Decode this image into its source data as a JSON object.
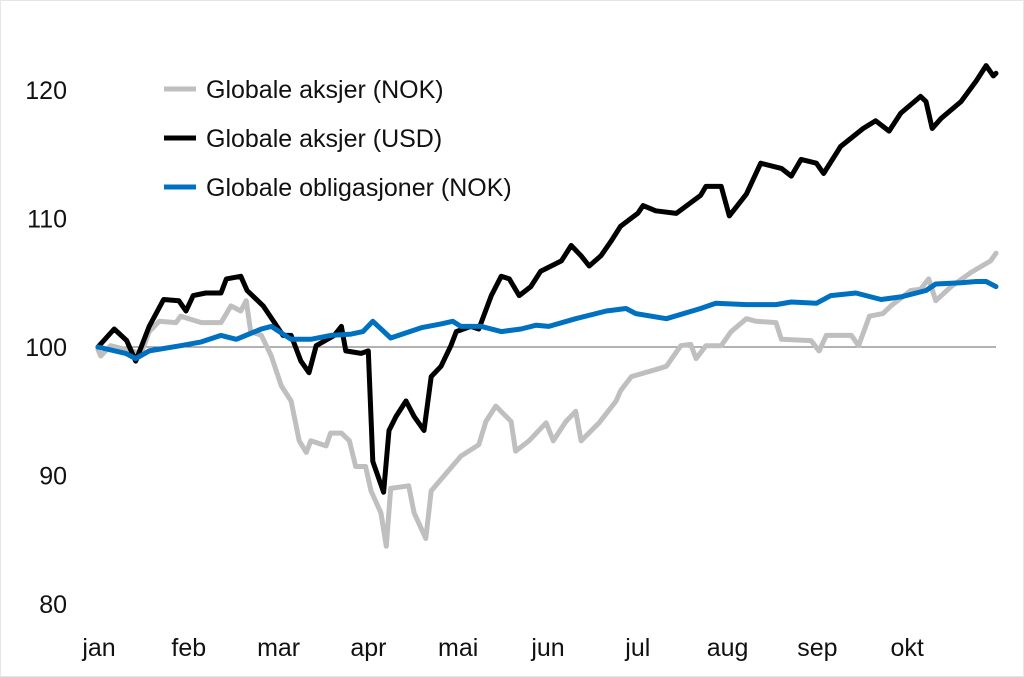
{
  "chart_data": {
    "type": "line",
    "title": "",
    "xlabel": "",
    "ylabel": "",
    "ylim": [
      80,
      122
    ],
    "xlim": [
      0,
      10
    ],
    "yticks": [
      80,
      90,
      100,
      110,
      120
    ],
    "xtick_labels": [
      "jan",
      "feb",
      "mar",
      "apr",
      "mai",
      "jun",
      "jul",
      "aug",
      "sep",
      "okt"
    ],
    "reference_line": 100,
    "legend_position": "top-left",
    "series": [
      {
        "name": "Globale aksjer (NOK)",
        "color": "#bfbfbf",
        "points": [
          [
            0,
            99.8
          ],
          [
            0.03,
            99.3
          ],
          [
            0.14,
            100.1
          ],
          [
            0.48,
            99.5
          ],
          [
            0.57,
            101.2
          ],
          [
            0.68,
            102.0
          ],
          [
            0.87,
            101.9
          ],
          [
            0.92,
            102.4
          ],
          [
            1.15,
            101.9
          ],
          [
            1.37,
            101.9
          ],
          [
            1.43,
            102.6
          ],
          [
            1.48,
            103.2
          ],
          [
            1.59,
            102.8
          ],
          [
            1.65,
            103.6
          ],
          [
            1.7,
            101.2
          ],
          [
            1.82,
            100.9
          ],
          [
            1.93,
            99.3
          ],
          [
            2.04,
            97.0
          ],
          [
            2.15,
            95.8
          ],
          [
            2.24,
            92.7
          ],
          [
            2.32,
            91.8
          ],
          [
            2.37,
            92.7
          ],
          [
            2.54,
            92.3
          ],
          [
            2.59,
            93.3
          ],
          [
            2.71,
            93.3
          ],
          [
            2.8,
            92.7
          ],
          [
            2.87,
            90.7
          ],
          [
            2.98,
            90.7
          ],
          [
            3.04,
            88.8
          ],
          [
            3.15,
            87.1
          ],
          [
            3.21,
            84.5
          ],
          [
            3.26,
            89.0
          ],
          [
            3.46,
            89.2
          ],
          [
            3.52,
            87.1
          ],
          [
            3.65,
            85.1
          ],
          [
            3.71,
            88.8
          ],
          [
            3.82,
            89.7
          ],
          [
            4.04,
            91.5
          ],
          [
            4.24,
            92.4
          ],
          [
            4.32,
            94.2
          ],
          [
            4.43,
            95.4
          ],
          [
            4.6,
            94.2
          ],
          [
            4.65,
            91.9
          ],
          [
            4.8,
            92.7
          ],
          [
            4.99,
            94.1
          ],
          [
            5.07,
            92.7
          ],
          [
            5.21,
            94.2
          ],
          [
            5.32,
            95.0
          ],
          [
            5.38,
            92.7
          ],
          [
            5.58,
            94.1
          ],
          [
            5.77,
            95.8
          ],
          [
            5.82,
            96.6
          ],
          [
            5.94,
            97.7
          ],
          [
            6.24,
            98.3
          ],
          [
            6.33,
            98.5
          ],
          [
            6.49,
            100.1
          ],
          [
            6.6,
            100.2
          ],
          [
            6.66,
            99.1
          ],
          [
            6.77,
            100.1
          ],
          [
            6.94,
            100.1
          ],
          [
            7.05,
            101.2
          ],
          [
            7.22,
            102.2
          ],
          [
            7.33,
            102.0
          ],
          [
            7.55,
            101.9
          ],
          [
            7.61,
            100.6
          ],
          [
            7.94,
            100.5
          ],
          [
            8.03,
            99.7
          ],
          [
            8.11,
            100.9
          ],
          [
            8.39,
            100.9
          ],
          [
            8.47,
            100.1
          ],
          [
            8.59,
            102.4
          ],
          [
            8.74,
            102.6
          ],
          [
            8.83,
            103.2
          ],
          [
            9.05,
            104.4
          ],
          [
            9.16,
            104.5
          ],
          [
            9.25,
            105.3
          ],
          [
            9.33,
            103.6
          ],
          [
            9.5,
            104.7
          ],
          [
            9.72,
            105.8
          ],
          [
            9.94,
            106.7
          ],
          [
            10.0,
            107.3
          ]
        ]
      },
      {
        "name": "Globale aksjer (USD)",
        "color": "#000000",
        "points": [
          [
            0,
            100.0
          ],
          [
            0.18,
            101.4
          ],
          [
            0.32,
            100.5
          ],
          [
            0.42,
            98.9
          ],
          [
            0.57,
            101.6
          ],
          [
            0.73,
            103.7
          ],
          [
            0.9,
            103.6
          ],
          [
            0.98,
            102.8
          ],
          [
            1.06,
            104.0
          ],
          [
            1.2,
            104.2
          ],
          [
            1.37,
            104.2
          ],
          [
            1.43,
            105.3
          ],
          [
            1.59,
            105.5
          ],
          [
            1.66,
            104.4
          ],
          [
            1.84,
            103.2
          ],
          [
            2.06,
            100.9
          ],
          [
            2.15,
            100.9
          ],
          [
            2.26,
            98.9
          ],
          [
            2.35,
            98.0
          ],
          [
            2.43,
            100.1
          ],
          [
            2.63,
            100.9
          ],
          [
            2.71,
            101.6
          ],
          [
            2.76,
            99.7
          ],
          [
            2.93,
            99.5
          ],
          [
            3.01,
            99.7
          ],
          [
            3.06,
            91.1
          ],
          [
            3.18,
            88.7
          ],
          [
            3.24,
            93.5
          ],
          [
            3.32,
            94.6
          ],
          [
            3.43,
            95.8
          ],
          [
            3.52,
            94.6
          ],
          [
            3.63,
            93.5
          ],
          [
            3.71,
            97.7
          ],
          [
            3.82,
            98.5
          ],
          [
            3.93,
            100.1
          ],
          [
            3.99,
            101.2
          ],
          [
            4.15,
            101.6
          ],
          [
            4.24,
            101.4
          ],
          [
            4.38,
            104.0
          ],
          [
            4.49,
            105.5
          ],
          [
            4.58,
            105.3
          ],
          [
            4.69,
            104.0
          ],
          [
            4.82,
            104.7
          ],
          [
            4.93,
            105.9
          ],
          [
            5.16,
            106.7
          ],
          [
            5.27,
            107.9
          ],
          [
            5.38,
            107.1
          ],
          [
            5.47,
            106.3
          ],
          [
            5.6,
            107.1
          ],
          [
            5.71,
            108.2
          ],
          [
            5.82,
            109.4
          ],
          [
            6.01,
            110.4
          ],
          [
            6.07,
            111.0
          ],
          [
            6.21,
            110.6
          ],
          [
            6.44,
            110.4
          ],
          [
            6.71,
            111.8
          ],
          [
            6.77,
            112.5
          ],
          [
            6.94,
            112.5
          ],
          [
            7.03,
            110.2
          ],
          [
            7.22,
            111.9
          ],
          [
            7.38,
            114.3
          ],
          [
            7.61,
            113.9
          ],
          [
            7.72,
            113.3
          ],
          [
            7.83,
            114.6
          ],
          [
            8.0,
            114.3
          ],
          [
            8.08,
            113.5
          ],
          [
            8.27,
            115.6
          ],
          [
            8.52,
            117.0
          ],
          [
            8.66,
            117.6
          ],
          [
            8.81,
            116.8
          ],
          [
            8.94,
            118.2
          ],
          [
            9.16,
            119.5
          ],
          [
            9.22,
            119.1
          ],
          [
            9.29,
            117.0
          ],
          [
            9.39,
            117.8
          ],
          [
            9.61,
            119.1
          ],
          [
            9.78,
            120.7
          ],
          [
            9.89,
            121.9
          ],
          [
            9.97,
            121.1
          ],
          [
            10.0,
            121.3
          ]
        ]
      },
      {
        "name": "Globale obligasjoner (NOK)",
        "color": "#0070c0",
        "points": [
          [
            0,
            100.0
          ],
          [
            0.31,
            99.5
          ],
          [
            0.42,
            99.1
          ],
          [
            0.57,
            99.7
          ],
          [
            0.92,
            100.1
          ],
          [
            1.15,
            100.4
          ],
          [
            1.37,
            100.9
          ],
          [
            1.54,
            100.6
          ],
          [
            1.82,
            101.4
          ],
          [
            1.93,
            101.6
          ],
          [
            2.15,
            100.6
          ],
          [
            2.37,
            100.6
          ],
          [
            2.59,
            100.9
          ],
          [
            2.82,
            101.0
          ],
          [
            2.95,
            101.2
          ],
          [
            3.06,
            102.0
          ],
          [
            3.26,
            100.7
          ],
          [
            3.6,
            101.5
          ],
          [
            3.82,
            101.8
          ],
          [
            3.95,
            102.0
          ],
          [
            4.04,
            101.6
          ],
          [
            4.27,
            101.6
          ],
          [
            4.49,
            101.2
          ],
          [
            4.71,
            101.4
          ],
          [
            4.88,
            101.7
          ],
          [
            5.02,
            101.6
          ],
          [
            5.32,
            102.2
          ],
          [
            5.66,
            102.8
          ],
          [
            5.88,
            103.0
          ],
          [
            5.99,
            102.6
          ],
          [
            6.33,
            102.2
          ],
          [
            6.71,
            103.0
          ],
          [
            6.88,
            103.4
          ],
          [
            7.22,
            103.3
          ],
          [
            7.55,
            103.3
          ],
          [
            7.72,
            103.5
          ],
          [
            8.0,
            103.4
          ],
          [
            8.16,
            104.0
          ],
          [
            8.44,
            104.2
          ],
          [
            8.72,
            103.7
          ],
          [
            8.94,
            103.9
          ],
          [
            9.22,
            104.4
          ],
          [
            9.33,
            104.9
          ],
          [
            9.61,
            105.0
          ],
          [
            9.78,
            105.1
          ],
          [
            9.89,
            105.1
          ],
          [
            10.0,
            104.7
          ]
        ]
      }
    ]
  }
}
